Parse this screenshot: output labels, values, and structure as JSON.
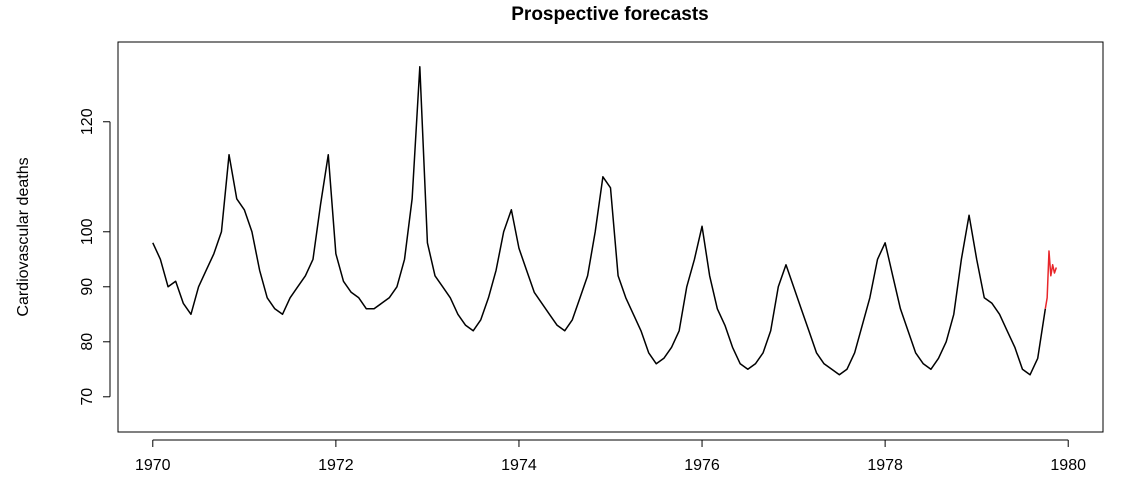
{
  "chart_data": {
    "type": "line",
    "title": "Prospective forecasts",
    "y_label": "Cardiovascular deaths",
    "xlim": [
      1969.62,
      1980.38
    ],
    "ylim": [
      63.6,
      134.5
    ],
    "xticks": [
      1970,
      1972,
      1974,
      1976,
      1978,
      1980
    ],
    "yticks": [
      70,
      80,
      90,
      100,
      120
    ],
    "series": [
      {
        "color": "#000000",
        "x": [
          1970,
          1970.083,
          1970.167,
          1970.25,
          1970.333,
          1970.417,
          1970.5,
          1970.583,
          1970.667,
          1970.75,
          1970.833,
          1970.917,
          1971,
          1971.083,
          1971.167,
          1971.25,
          1971.333,
          1971.417,
          1971.5,
          1971.583,
          1971.667,
          1971.75,
          1971.833,
          1971.917,
          1972,
          1972.083,
          1972.167,
          1972.25,
          1972.333,
          1972.417,
          1972.5,
          1972.583,
          1972.667,
          1972.75,
          1972.833,
          1972.917,
          1973,
          1973.083,
          1973.167,
          1973.25,
          1973.333,
          1973.417,
          1973.5,
          1973.583,
          1973.667,
          1973.75,
          1973.833,
          1973.917,
          1974,
          1974.083,
          1974.167,
          1974.25,
          1974.333,
          1974.417,
          1974.5,
          1974.583,
          1974.667,
          1974.75,
          1974.833,
          1974.917,
          1975,
          1975.083,
          1975.167,
          1975.25,
          1975.333,
          1975.417,
          1975.5,
          1975.583,
          1975.667,
          1975.75,
          1975.833,
          1975.917,
          1976,
          1976.083,
          1976.167,
          1976.25,
          1976.333,
          1976.417,
          1976.5,
          1976.583,
          1976.667,
          1976.75,
          1976.833,
          1976.917,
          1977,
          1977.083,
          1977.167,
          1977.25,
          1977.333,
          1977.417,
          1977.5,
          1977.583,
          1977.667,
          1977.75,
          1977.833,
          1977.917,
          1978,
          1978.083,
          1978.167,
          1978.25,
          1978.333,
          1978.417,
          1978.5,
          1978.583,
          1978.667,
          1978.75,
          1978.833,
          1978.917,
          1979,
          1979.083,
          1979.167,
          1979.25,
          1979.333,
          1979.417,
          1979.5,
          1979.583,
          1979.667,
          1979.75
        ],
        "values": [
          98,
          95,
          90,
          91,
          87,
          85,
          90,
          93,
          96,
          100,
          114,
          106,
          104,
          100,
          93,
          88,
          86,
          85,
          88,
          90,
          92,
          95,
          105,
          114,
          96,
          91,
          89,
          88,
          86,
          86,
          87,
          88,
          90,
          95,
          106,
          130,
          98,
          92,
          90,
          88,
          85,
          83,
          82,
          84,
          88,
          93,
          100,
          104,
          97,
          93,
          89,
          87,
          85,
          83,
          82,
          84,
          88,
          92,
          100,
          110,
          108,
          92,
          88,
          85,
          82,
          78,
          76,
          77,
          79,
          82,
          90,
          95,
          101,
          92,
          86,
          83,
          79,
          76,
          75,
          76,
          78,
          82,
          90,
          94,
          90,
          86,
          82,
          78,
          76,
          75,
          74,
          75,
          78,
          83,
          88,
          95,
          98,
          92,
          86,
          82,
          78,
          76,
          75,
          77,
          80,
          85,
          95,
          103,
          95,
          88,
          87,
          85,
          82,
          79,
          75,
          74,
          77,
          86
        ]
      },
      {
        "color": "#e8262a",
        "x": [
          1979.75,
          1979.77,
          1979.79,
          1979.81,
          1979.83,
          1979.85,
          1979.87
        ],
        "values": [
          86,
          88,
          96.5,
          92,
          94,
          92.5,
          93.5
        ]
      }
    ]
  }
}
